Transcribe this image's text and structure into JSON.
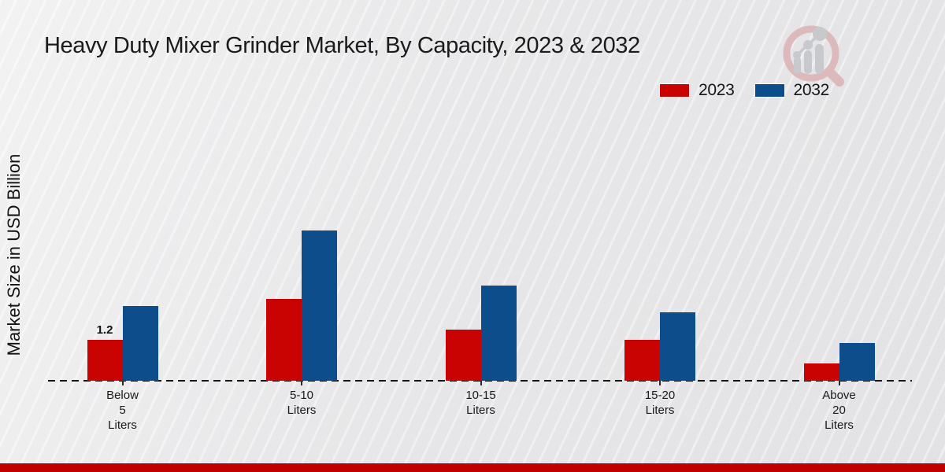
{
  "page": {
    "title": "Heavy Duty Mixer Grinder Market, By Capacity, 2023 & 2032",
    "y_axis_label": "Market Size in USD Billion"
  },
  "legend": {
    "items": [
      {
        "label": "2023",
        "color": "#c90202"
      },
      {
        "label": "2032",
        "color": "#0e4d8b"
      }
    ]
  },
  "logo": {
    "name": "magnifier-bar-chart-logo",
    "ring_color": "#dcbabc",
    "glyph_color": "#c7c9cc"
  },
  "chart_data": {
    "type": "bar",
    "title": "Heavy Duty Mixer Grinder Market, By Capacity, 2023 & 2032",
    "xlabel": "",
    "ylabel": "Market Size in USD Billion",
    "categories": [
      "Below\n5\nLiters",
      "5-10\nLiters",
      "10-15\nLiters",
      "15-20\nLiters",
      "Above\n20\nLiters"
    ],
    "series": [
      {
        "name": "2023",
        "color": "#c90202",
        "values": [
          1.2,
          2.4,
          1.5,
          1.2,
          0.5
        ]
      },
      {
        "name": "2032",
        "color": "#0e4d8b",
        "values": [
          2.2,
          4.4,
          2.8,
          2.0,
          1.1
        ]
      }
    ],
    "annotations": [
      {
        "series": "2023",
        "category_index": 0,
        "text": "1.2"
      }
    ],
    "ylim": [
      0,
      5
    ],
    "grid": false,
    "baseline_style": "dashed",
    "legend_position": "top-right"
  },
  "footer": {
    "stripe_color": "#c00000"
  }
}
